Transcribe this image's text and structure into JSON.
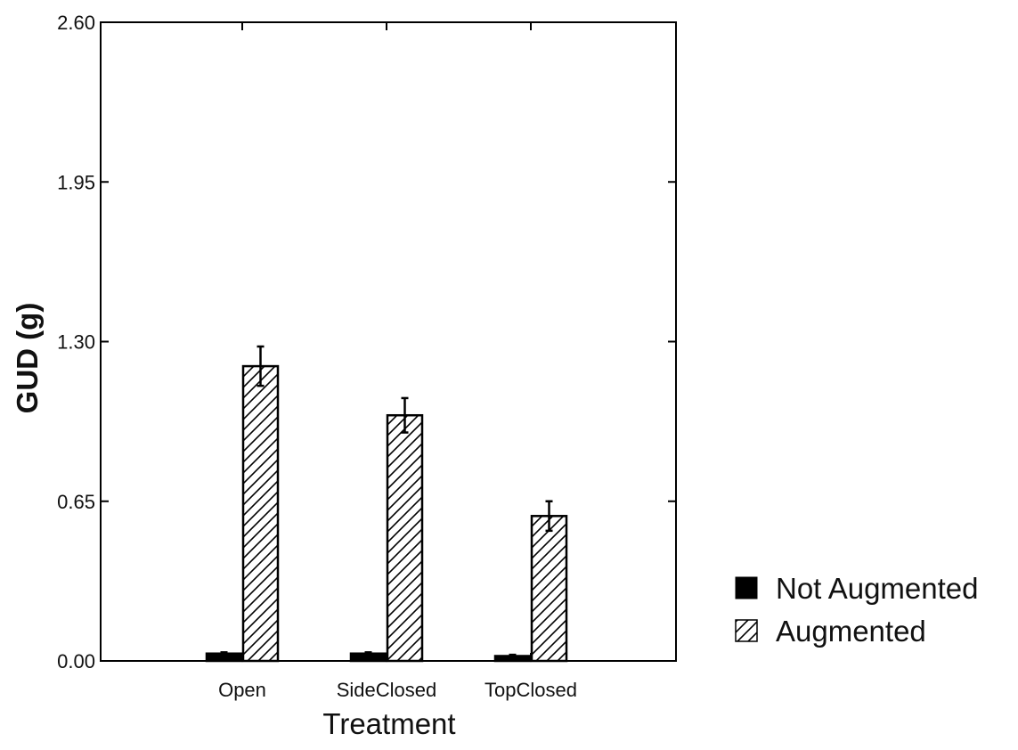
{
  "chart_data": {
    "type": "bar",
    "title": "",
    "xlabel": "Treatment",
    "ylabel": "GUD (g)",
    "ylim": [
      0,
      2.6
    ],
    "yticks": [
      "0.00",
      "0.65",
      "1.30",
      "1.95",
      "2.60"
    ],
    "categories": [
      "Open",
      "SideClosed",
      "TopClosed"
    ],
    "grid": false,
    "legend_position": "right",
    "series": [
      {
        "name": "Not Augmented",
        "fill": "solid",
        "color": "#000000",
        "values": [
          0.03,
          0.03,
          0.02
        ],
        "errors": [
          0.005,
          0.005,
          0.005
        ]
      },
      {
        "name": "Augmented",
        "fill": "hatched",
        "color": "#000000",
        "values": [
          1.2,
          1.0,
          0.59
        ],
        "errors": [
          0.08,
          0.07,
          0.06
        ]
      }
    ]
  }
}
